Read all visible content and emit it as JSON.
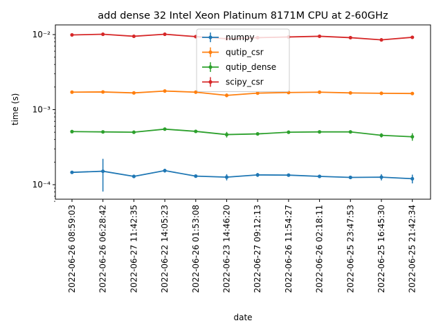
{
  "chart_data": {
    "type": "line",
    "title": "add dense 32 Intel Xeon Platinum 8171M CPU at 2-60GHz",
    "xlabel": "date",
    "ylabel": "time (s)",
    "yscale": "log",
    "ylim": [
      6e-05,
      0.015
    ],
    "y_tick_labels": [
      "10⁻⁴",
      "10⁻³",
      "10⁻²"
    ],
    "y_tick_values": [
      0.0001,
      0.001,
      0.01
    ],
    "legend_position": "top-center",
    "categories": [
      "2022-06-26 08:59:03",
      "2022-06-26 06:28:42",
      "2022-06-27 11:42:35",
      "2022-06-22 14:05:23",
      "2022-06-26 01:53:08",
      "2022-06-23 14:46:20",
      "2022-06-27 09:12:13",
      "2022-06-26 11:54:27",
      "2022-06-26 02:18:11",
      "2022-06-25 23:47:53",
      "2022-06-25 16:45:30",
      "2022-06-25 21:42:34"
    ],
    "series": [
      {
        "name": "numpy",
        "color": "#1f77b4",
        "values": [
          0.000146,
          0.000151,
          0.000129,
          0.000154,
          0.00013,
          0.000126,
          0.000135,
          0.000134,
          0.000129,
          0.000125,
          0.000126,
          0.00012
        ],
        "err_low": [
          2e-06,
          7e-05,
          2e-06,
          9e-06,
          4e-06,
          1.2e-05,
          8e-06,
          4e-06,
          3e-06,
          4e-06,
          1.2e-05,
          1.6e-05
        ],
        "err_high": [
          2e-06,
          7e-05,
          2e-06,
          9e-06,
          4e-06,
          1.2e-05,
          8e-06,
          4e-06,
          3e-06,
          4e-06,
          1.2e-05,
          1.6e-05
        ]
      },
      {
        "name": "qutip_csr",
        "color": "#ff7f0e",
        "values": [
          0.00171,
          0.00172,
          0.00167,
          0.00177,
          0.00171,
          0.00155,
          0.00166,
          0.00169,
          0.00171,
          0.00167,
          0.00165,
          0.00164
        ],
        "err_low": [
          3e-05,
          3e-05,
          3e-05,
          4e-05,
          3e-05,
          9e-05,
          5e-05,
          3e-05,
          3e-05,
          3e-05,
          3e-05,
          3e-05
        ],
        "err_high": [
          3e-05,
          3e-05,
          3e-05,
          4e-05,
          3e-05,
          9e-05,
          5e-05,
          3e-05,
          3e-05,
          3e-05,
          3e-05,
          3e-05
        ]
      },
      {
        "name": "qutip_dense",
        "color": "#2ca02c",
        "values": [
          0.00051,
          0.000505,
          0.0005,
          0.00055,
          0.000513,
          0.000465,
          0.000475,
          0.0005,
          0.000505,
          0.000505,
          0.000455,
          0.000435
        ],
        "err_low": [
          1e-05,
          1e-05,
          1e-05,
          2e-05,
          1e-05,
          4e-05,
          2e-05,
          2e-05,
          1e-05,
          1e-05,
          3e-05,
          5e-05
        ],
        "err_high": [
          1e-05,
          1e-05,
          1e-05,
          2e-05,
          1e-05,
          4e-05,
          2e-05,
          2e-05,
          1e-05,
          1e-05,
          3e-05,
          5e-05
        ]
      },
      {
        "name": "scipy_csr",
        "color": "#d62728",
        "values": [
          0.0099,
          0.0101,
          0.0095,
          0.0101,
          0.0094,
          0.0088,
          0.0091,
          0.0093,
          0.0095,
          0.0091,
          0.0085,
          0.0092
        ],
        "err_low": [
          0.0002,
          0.0003,
          0.0002,
          0.0002,
          0.0002,
          0.0003,
          0.0002,
          0.0002,
          0.0002,
          0.0002,
          0.0003,
          0.0002
        ],
        "err_high": [
          0.0002,
          0.0003,
          0.0002,
          0.0002,
          0.0002,
          0.0003,
          0.0002,
          0.0002,
          0.0002,
          0.0002,
          0.0003,
          0.0002
        ]
      }
    ]
  }
}
